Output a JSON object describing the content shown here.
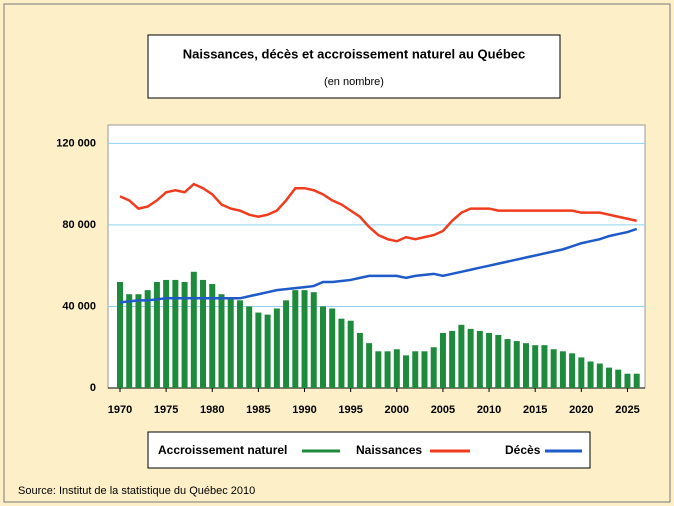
{
  "chart_data": {
    "type": "bar-line",
    "title": "Naissances, décès et accroissement naturel au Québec",
    "subtitle": "(en nombre)",
    "source": "Source: Institut de la statistique du Québec 2010",
    "x": [
      1970,
      1971,
      1972,
      1973,
      1974,
      1975,
      1976,
      1977,
      1978,
      1979,
      1980,
      1981,
      1982,
      1983,
      1984,
      1985,
      1986,
      1987,
      1988,
      1989,
      1990,
      1991,
      1992,
      1993,
      1994,
      1995,
      1996,
      1997,
      1998,
      1999,
      2000,
      2001,
      2002,
      2003,
      2004,
      2005,
      2006,
      2007,
      2008,
      2009,
      2010,
      2011,
      2012,
      2013,
      2014,
      2015,
      2016,
      2017,
      2018,
      2019,
      2020,
      2021,
      2022,
      2023,
      2024,
      2025,
      2026
    ],
    "series": [
      {
        "name": "Accroissement naturel",
        "kind": "bar",
        "color": "#1e8a3c",
        "values": [
          52000,
          46000,
          46000,
          48000,
          52000,
          53000,
          53000,
          52000,
          57000,
          53000,
          51000,
          46000,
          44000,
          43000,
          40000,
          37000,
          36000,
          39000,
          43000,
          48000,
          48000,
          47000,
          40000,
          39000,
          34000,
          33000,
          27000,
          22000,
          18000,
          18000,
          19000,
          16000,
          18000,
          18000,
          20000,
          27000,
          28000,
          31000,
          29000,
          28000,
          27000,
          26000,
          24000,
          23000,
          22000,
          21000,
          21000,
          19000,
          18000,
          17000,
          15000,
          13000,
          12000,
          10000,
          9000,
          7000,
          7000
        ]
      },
      {
        "name": "Naissances",
        "kind": "line",
        "color": "#f03c1e",
        "values": [
          94000,
          92000,
          88000,
          89000,
          92000,
          96000,
          97000,
          96000,
          100000,
          98000,
          95000,
          90000,
          88000,
          87000,
          85000,
          84000,
          85000,
          87000,
          92000,
          98000,
          98000,
          97000,
          95000,
          92000,
          90000,
          87000,
          84000,
          79000,
          75000,
          73000,
          72000,
          74000,
          73000,
          74000,
          75000,
          77000,
          82000,
          86000,
          88000,
          88000,
          88000,
          87000,
          87000,
          87000,
          87000,
          87000,
          87000,
          87000,
          87000,
          87000,
          86000,
          86000,
          86000,
          85000,
          84000,
          83000,
          82000
        ]
      },
      {
        "name": "Décès",
        "kind": "line",
        "color": "#1e5ac8",
        "values": [
          42000,
          42500,
          43000,
          43000,
          43500,
          44000,
          44000,
          44000,
          44000,
          44000,
          44000,
          44000,
          44000,
          44000,
          45000,
          46000,
          47000,
          48000,
          48500,
          49000,
          49500,
          50000,
          52000,
          52000,
          52500,
          53000,
          54000,
          55000,
          55000,
          55000,
          55000,
          54000,
          55000,
          55500,
          56000,
          55000,
          56000,
          57000,
          58000,
          59000,
          60000,
          61000,
          62000,
          63000,
          64000,
          65000,
          66000,
          67000,
          68000,
          69500,
          71000,
          72000,
          73000,
          74500,
          75500,
          76500,
          78000
        ]
      }
    ],
    "xlim": [
      1968.7,
      2026.9
    ],
    "xticks": [
      1970,
      1975,
      1980,
      1985,
      1990,
      1995,
      2000,
      2005,
      2010,
      2015,
      2020,
      2025
    ],
    "ylim": [
      0,
      129000
    ],
    "yticks": [
      {
        "value": 0,
        "label": "0"
      },
      {
        "value": 40000,
        "label": "40 000"
      },
      {
        "value": 80000,
        "label": "80 000"
      },
      {
        "value": 120000,
        "label": "120 000"
      }
    ],
    "grid": true
  }
}
